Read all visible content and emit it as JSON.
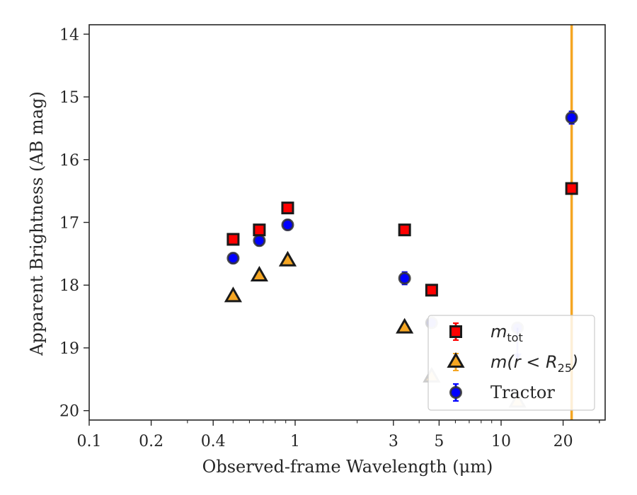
{
  "chart_data": {
    "type": "scatter",
    "title": "",
    "xlabel": "Observed-frame Wavelength (μm)",
    "ylabel": "Apparent Brightness (AB mag)",
    "xscale": "log",
    "xlim": [
      0.1,
      32
    ],
    "ylim": [
      20.15,
      13.85
    ],
    "y_inverted": true,
    "x_ticks": [
      0.1,
      0.2,
      0.4,
      1,
      3,
      5,
      10,
      20
    ],
    "x_tick_labels": [
      "0.1",
      "0.2",
      "0.4",
      "1",
      "3",
      "5",
      "10",
      "20"
    ],
    "y_ticks": [
      14,
      15,
      16,
      17,
      18,
      19,
      20
    ],
    "y_tick_labels": [
      "14",
      "15",
      "16",
      "17",
      "18",
      "19",
      "20"
    ],
    "grid": false,
    "legend_position": "lower-right",
    "vline": {
      "x": 22,
      "color": "#f5a623"
    },
    "series": [
      {
        "name": "m_tot",
        "marker": "square",
        "color": "#ff0000",
        "edge": "#1a1a1a",
        "points": [
          {
            "x": 0.5,
            "y": 17.27,
            "yerr": 0.05
          },
          {
            "x": 0.67,
            "y": 17.12,
            "yerr": 0.05
          },
          {
            "x": 0.92,
            "y": 16.77,
            "yerr": 0.05
          },
          {
            "x": 3.4,
            "y": 17.12,
            "yerr": 0.05
          },
          {
            "x": 4.6,
            "y": 18.08,
            "yerr": 0.05
          },
          {
            "x": 22,
            "y": 16.46,
            "yerr": 0.05
          }
        ]
      },
      {
        "name": "m(r < R25)",
        "marker": "triangle",
        "color": "#f5a623",
        "edge": "#1a1a1a",
        "points": [
          {
            "x": 0.5,
            "y": 18.17
          },
          {
            "x": 0.67,
            "y": 17.84
          },
          {
            "x": 0.92,
            "y": 17.6
          },
          {
            "x": 3.4,
            "y": 18.67
          },
          {
            "x": 4.6,
            "y": 19.45,
            "faded": true
          },
          {
            "x": 12,
            "y": 19.85,
            "faded": true
          }
        ]
      },
      {
        "name": "Tractor",
        "marker": "circle",
        "color": "#0000ff",
        "edge": "#333333",
        "points": [
          {
            "x": 0.5,
            "y": 17.57,
            "yerr": 0.08
          },
          {
            "x": 0.67,
            "y": 17.29,
            "yerr": 0.08
          },
          {
            "x": 0.92,
            "y": 17.04,
            "yerr": 0.08
          },
          {
            "x": 3.4,
            "y": 17.89,
            "yerr": 0.1
          },
          {
            "x": 4.6,
            "y": 18.6,
            "faded": true
          },
          {
            "x": 12,
            "y": 18.68,
            "faded": true,
            "upper_limit": true
          },
          {
            "x": 22,
            "y": 15.33,
            "yerr": 0.1
          }
        ]
      }
    ]
  },
  "legend": {
    "items": [
      {
        "marker": "square",
        "text_main": "m",
        "text_sub": "tot",
        "math": true
      },
      {
        "marker": "triangle",
        "text_main": "m(r < R",
        "text_sub": "25",
        "text_after": ")",
        "math": true
      },
      {
        "marker": "circle",
        "text_main": "Tractor",
        "math": false
      }
    ]
  }
}
